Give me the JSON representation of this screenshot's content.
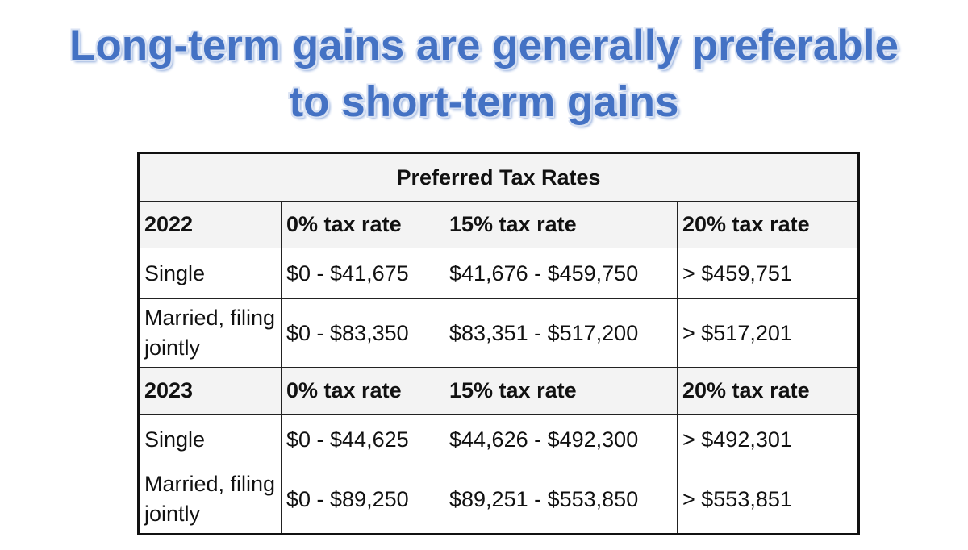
{
  "header": {
    "title_lines": [
      "Long-term gains are generally preferable",
      "to short-term gains"
    ]
  },
  "table": {
    "caption": "Preferred Tax Rates",
    "rows": [
      [
        "2022",
        "0% tax rate",
        "15% tax rate",
        "20% tax rate"
      ],
      [
        "Single",
        "$0 - $41,675",
        "$41,676 - $459,750",
        "> $459,751"
      ],
      [
        "Married, filing jointly",
        "$0 - $83,350",
        "$83,351 - $517,200",
        "> $517,201"
      ],
      [
        "2023",
        "0% tax rate",
        "15% tax rate",
        "20% tax rate"
      ],
      [
        "Single",
        "$0 - $44,625",
        "$44,626 - $492,300",
        "> $492,301"
      ],
      [
        "Married, filing jointly",
        "$0 - $89,250",
        "$89,251 - $553,850",
        "> $553,851"
      ]
    ]
  }
}
